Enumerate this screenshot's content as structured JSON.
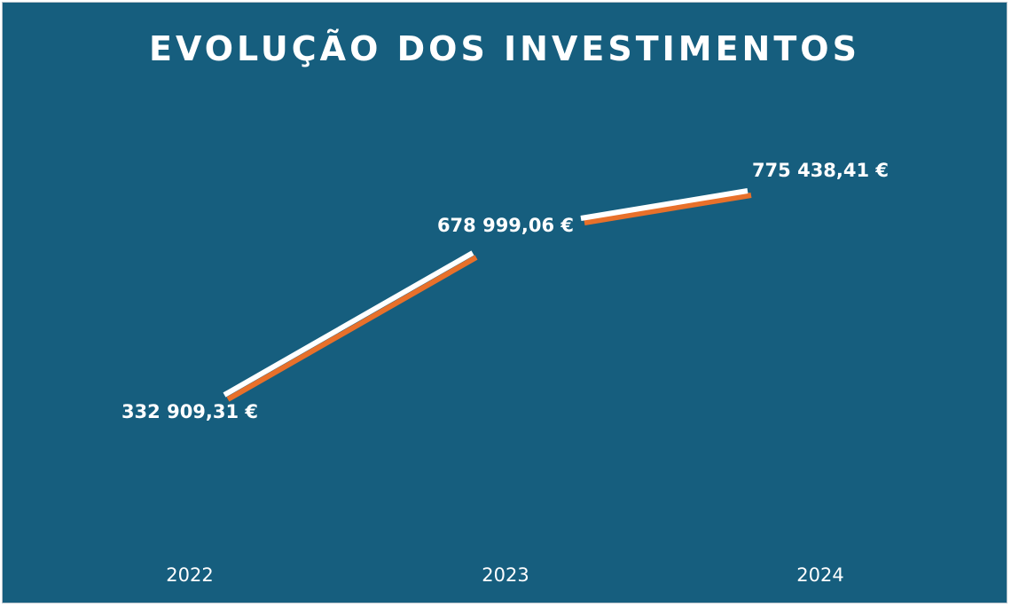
{
  "chart_data": {
    "type": "line",
    "title": "EVOLUÇÃO DOS INVESTIMENTOS",
    "categories": [
      "2022",
      "2023",
      "2024"
    ],
    "values": [
      332909.31,
      678999.06,
      775438.41
    ],
    "value_labels": [
      "332 909,31 €",
      "678 999,06 €",
      "775 438,41 €"
    ],
    "xlabel": "",
    "ylabel": "",
    "grid": false,
    "legend": "none"
  },
  "colors": {
    "background": "#165e7e",
    "line_main": "#ffffff",
    "line_shadow": "#e8702a",
    "text": "#ffffff"
  }
}
